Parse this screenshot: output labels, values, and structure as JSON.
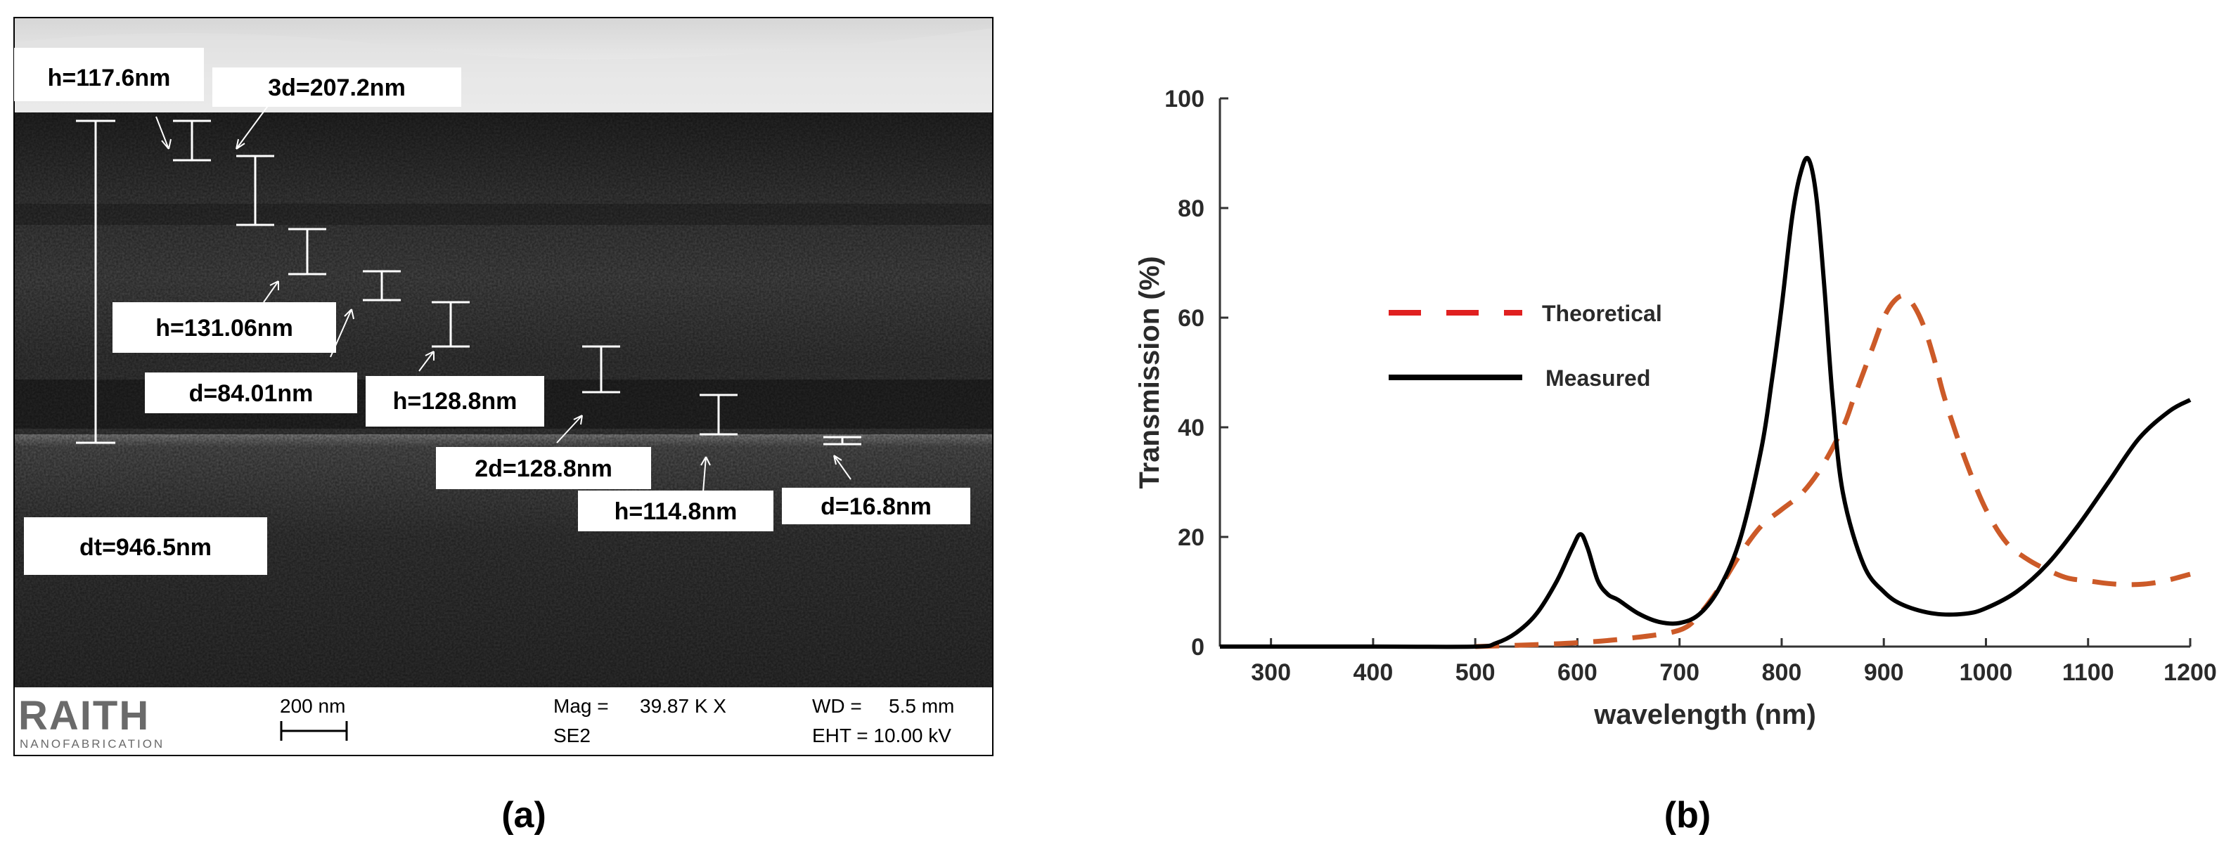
{
  "panel_a": {
    "label": "(a)",
    "annotations": [
      {
        "text": "h=117.6nm"
      },
      {
        "text": "3d=207.2nm"
      },
      {
        "text": "h=131.06nm"
      },
      {
        "text": "d=84.01nm"
      },
      {
        "text": "h=128.8nm"
      },
      {
        "text": "2d=128.8nm"
      },
      {
        "text": "h=114.8nm"
      },
      {
        "text": "d=16.8nm"
      },
      {
        "text": "dt=946.5nm"
      }
    ],
    "footer": {
      "logo_main": "RAITH",
      "logo_sub": "NANOFABRICATION",
      "scale_label": "200 nm",
      "mag_label": "Mag =",
      "mag_value": "39.87 K X",
      "detector": "SE2",
      "wd_label": "WD =",
      "wd_value": "5.5 mm",
      "eht_label": "EHT = 10.00 kV"
    }
  },
  "panel_b": {
    "label": "(b)",
    "colors": {
      "theoretical": "#cc5a28",
      "measured": "#000000",
      "legend_theoretical": "#e02020"
    }
  },
  "chart_data": {
    "type": "line",
    "title": "",
    "xlabel": "wavelength (nm)",
    "ylabel": "Transmission (%)",
    "xlim": [
      250,
      1200
    ],
    "ylim": [
      0,
      100
    ],
    "xticks": [
      300,
      400,
      500,
      600,
      700,
      800,
      900,
      1000,
      1100,
      1200
    ],
    "yticks": [
      0,
      20,
      40,
      60,
      80,
      100
    ],
    "legend_position": "upper-left",
    "grid": false,
    "series": [
      {
        "name": "Theoretical",
        "style": "dashed",
        "x": [
          500,
          550,
          600,
          650,
          700,
          720,
          740,
          760,
          780,
          800,
          820,
          840,
          860,
          870,
          880,
          890,
          900,
          910,
          920,
          930,
          940,
          950,
          960,
          980,
          1000,
          1020,
          1040,
          1060,
          1080,
          1100,
          1120,
          1140,
          1160,
          1180,
          1200
        ],
        "y": [
          0,
          0.3,
          0.7,
          1.5,
          3,
          6,
          11,
          17,
          22,
          25,
          28,
          33,
          40,
          45,
          50,
          55,
          60,
          63,
          64,
          62,
          58,
          52,
          45,
          34,
          25,
          19,
          16,
          14,
          12.5,
          12,
          11.5,
          11.3,
          11.5,
          12.2,
          13.2
        ]
      },
      {
        "name": "Measured",
        "style": "solid",
        "x": [
          250,
          400,
          500,
          520,
          540,
          560,
          580,
          595,
          603,
          610,
          620,
          630,
          640,
          660,
          680,
          700,
          720,
          740,
          760,
          780,
          790,
          800,
          810,
          818,
          826,
          834,
          842,
          850,
          860,
          880,
          900,
          920,
          950,
          980,
          1000,
          1030,
          1060,
          1090,
          1120,
          1150,
          1180,
          1200
        ],
        "y": [
          0,
          0,
          0,
          0.6,
          2.5,
          6,
          12,
          18,
          20.5,
          18,
          12,
          9.5,
          8.5,
          6,
          4.5,
          4.3,
          6,
          11,
          20,
          36,
          48,
          62,
          78,
          86,
          89,
          82,
          65,
          45,
          28,
          15,
          10,
          7.5,
          6,
          6,
          7,
          10,
          15,
          22,
          30,
          38,
          43,
          45
        ]
      }
    ]
  }
}
